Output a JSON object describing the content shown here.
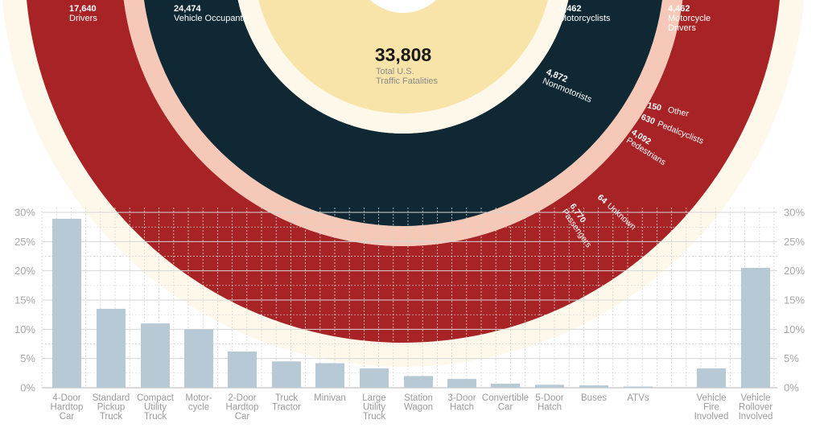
{
  "donut": {
    "total_value": "33,808",
    "total_label_1": "Total U.S.",
    "total_label_2": "Traffic Fatalities",
    "labels": {
      "drivers_value": "17,640",
      "drivers_label": "Drivers",
      "occupants_value": "24,474",
      "occupants_label": "Vehicle Occupants",
      "motorcyclists_value": "4,462",
      "motorcyclists_label": "Motorcyclists",
      "mc_drivers_value": "4,462",
      "mc_drivers_label_1": "Motorcycle",
      "mc_drivers_label_2": "Drivers",
      "nonmotorists_value": "4,872",
      "nonmotorists_label": "Nonmotorists",
      "other_value": "150",
      "other_label": "Other",
      "pedalcyclists_value": "630",
      "pedalcyclists_label": "Pedalcyclists",
      "pedestrians_value": "4,092",
      "pedestrians_label": "Pedestrians",
      "passengers_value": "6,770",
      "passengers_label": "Passengers",
      "unknown_value": "64",
      "unknown_label": "Unknown"
    }
  },
  "colors": {
    "drivers": "#a72326",
    "passengers": "#c9432f",
    "unknown_occ": "#e05a3a",
    "occupants_ring": "#f6c8b8",
    "occupants": "#0f2833",
    "motorcyclists": "#17507a",
    "mc_drivers": "#82452a",
    "mc_ring": "#a9c0d2",
    "nonmotorists": "#0d414a",
    "nonmot_ring": "#cde5d1",
    "pedestrians": "#f7c160",
    "pedalcyclists": "#e8a23c",
    "other": "#b06f1d",
    "center": "#f8e4a9",
    "bg_ring": "#fdf8ea",
    "bar": "#b6c9d5",
    "grid": "#d6d6d6"
  },
  "chart_data": {
    "type": "bar",
    "title": "",
    "ylim": [
      0,
      30
    ],
    "yticks": [
      "0%",
      "5%",
      "10%",
      "15%",
      "20%",
      "25%",
      "30%"
    ],
    "categories": [
      [
        "4-Door",
        "Hardtop",
        "Car"
      ],
      [
        "Standard",
        "Pickup",
        "Truck"
      ],
      [
        "Compact",
        "Utility",
        "Truck"
      ],
      [
        "Motor-",
        "cycle"
      ],
      [
        "2-Door",
        "Hardtop",
        "Car"
      ],
      [
        "Truck",
        "Tractor"
      ],
      [
        "Minivan"
      ],
      [
        "Large",
        "Utility",
        "Truck"
      ],
      [
        "Station",
        "Wagon"
      ],
      [
        "3-Door",
        "Hatch"
      ],
      [
        "Convertible",
        "Car"
      ],
      [
        "5-Door",
        "Hatch"
      ],
      [
        "Buses"
      ],
      [
        "ATVs"
      ],
      [
        "Vehicle",
        "Fire",
        "Involved"
      ],
      [
        "Vehicle",
        "Rollover",
        "Involved"
      ]
    ],
    "values": [
      28.9,
      13.5,
      11.0,
      10.0,
      6.2,
      4.5,
      4.2,
      3.3,
      2.0,
      1.5,
      0.7,
      0.5,
      0.4,
      0.2,
      3.3,
      20.5
    ]
  }
}
